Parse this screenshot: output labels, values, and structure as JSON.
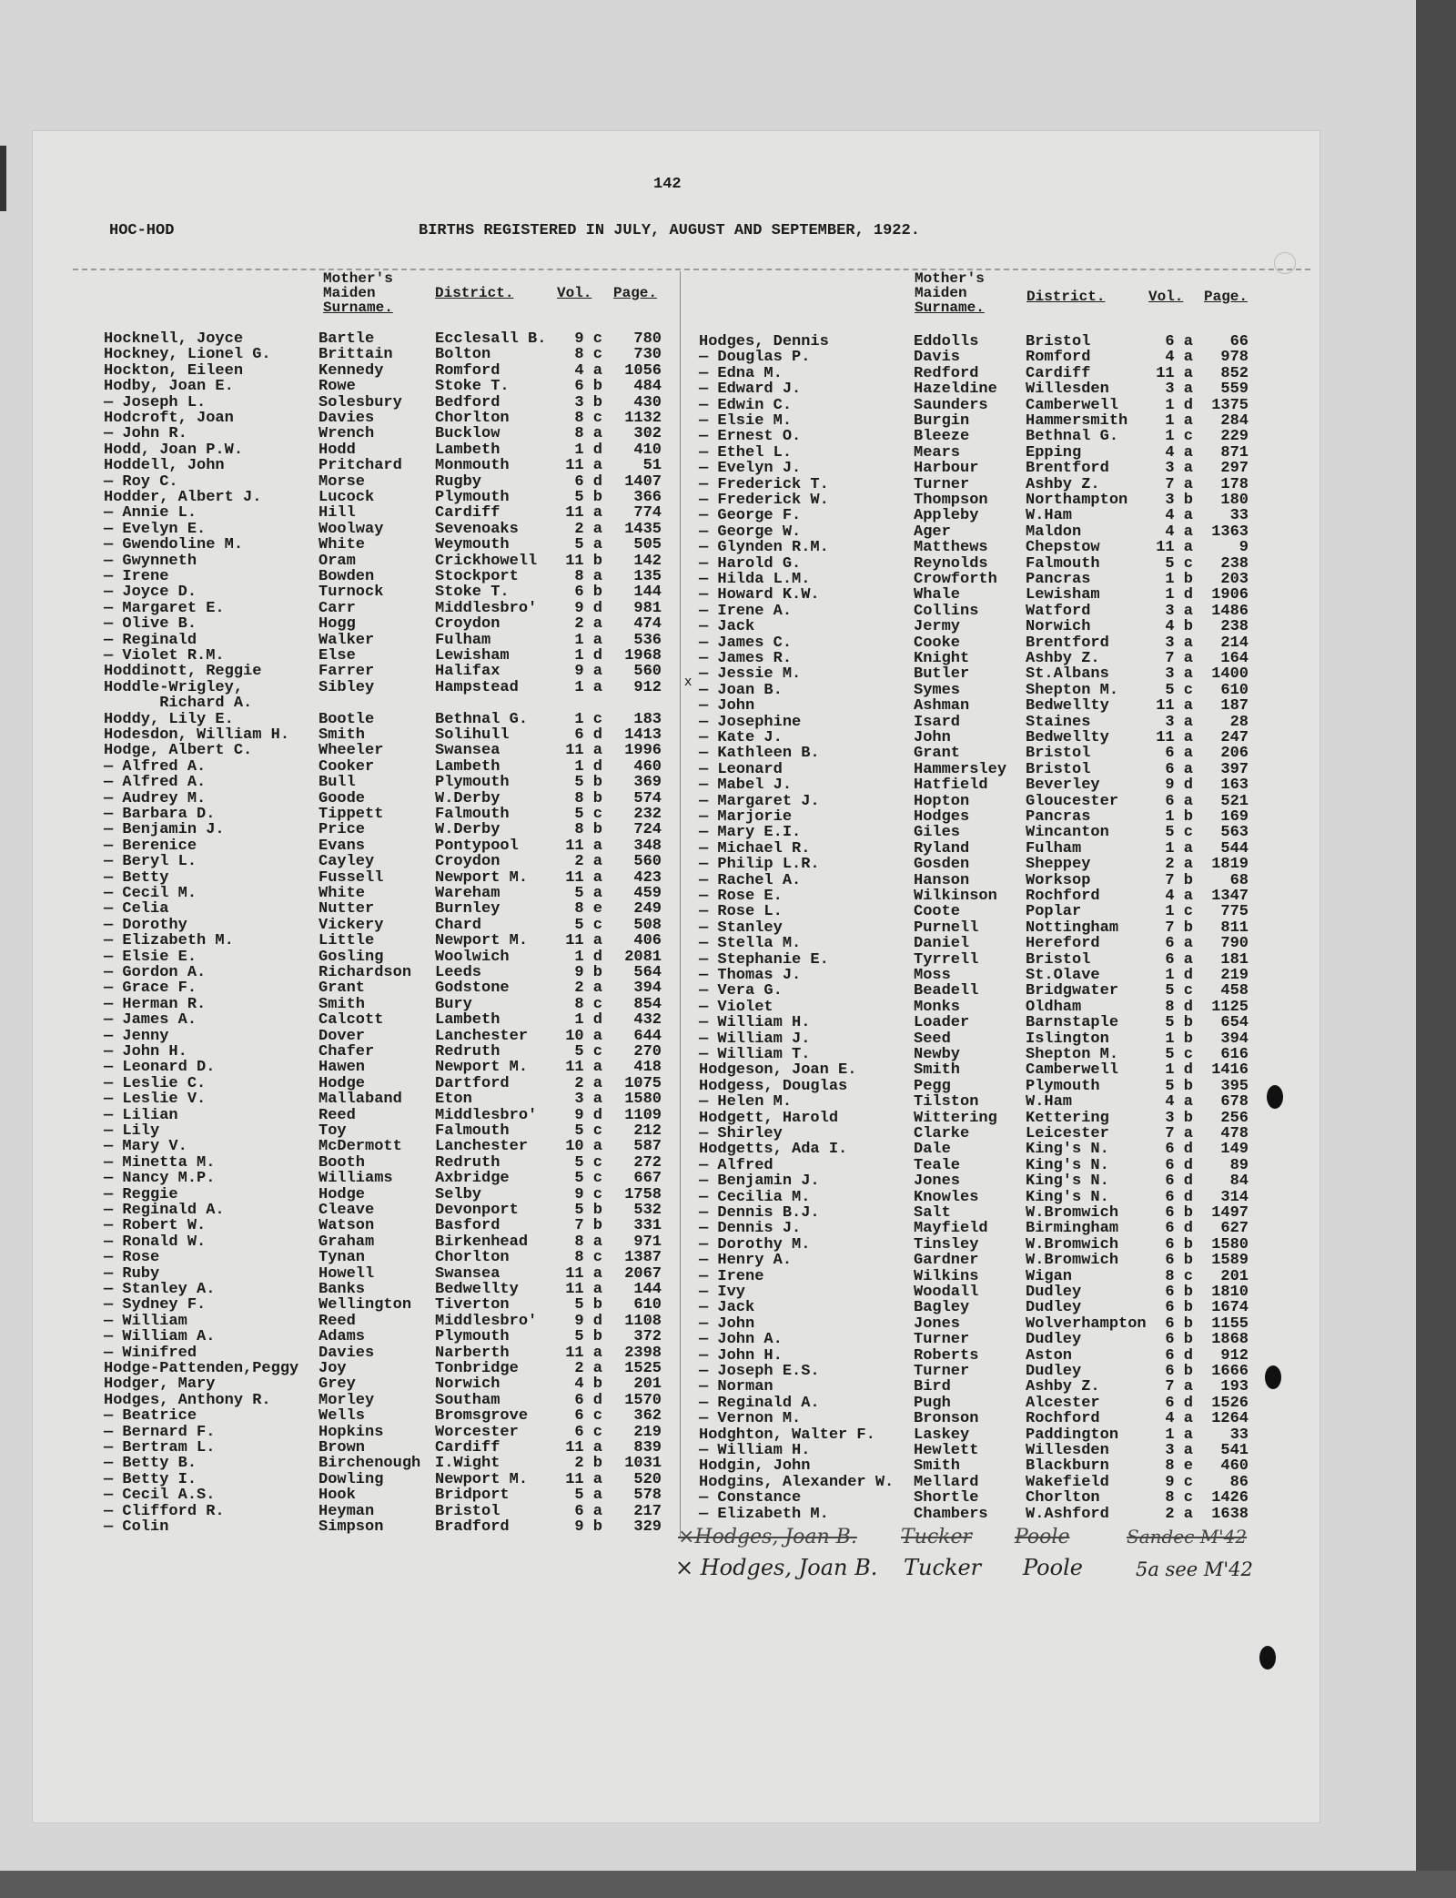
{
  "page_number": "142",
  "index_range": "HOC-HOD",
  "title": "BIRTHS REGISTERED IN JULY, AUGUST AND SEPTEMBER, 1922.",
  "column_headers": {
    "maiden_line1": "Mother's",
    "maiden_line2": "Maiden",
    "maiden_line3": "Surname.",
    "district": "District.",
    "vol": "Vol.",
    "page": "Page."
  },
  "left_entries": [
    [
      "Hocknell, Joyce",
      "Bartle",
      "Ecclesall B.",
      "9 c",
      "780"
    ],
    [
      "Hockney, Lionel G.",
      "Brittain",
      "Bolton",
      "8 c",
      "730"
    ],
    [
      "Hockton, Eileen",
      "Kennedy",
      "Romford",
      "4 a",
      "1056"
    ],
    [
      "Hodby, Joan E.",
      "Rowe",
      "Stoke T.",
      "6 b",
      "484"
    ],
    [
      "— Joseph L.",
      "Solesbury",
      "Bedford",
      "3 b",
      "430"
    ],
    [
      "Hodcroft, Joan",
      "Davies",
      "Chorlton",
      "8 c",
      "1132"
    ],
    [
      "— John R.",
      "Wrench",
      "Bucklow",
      "8 a",
      "302"
    ],
    [
      "Hodd, Joan P.W.",
      "Hodd",
      "Lambeth",
      "1 d",
      "410"
    ],
    [
      "Hoddell, John",
      "Pritchard",
      "Monmouth",
      "11 a",
      "51"
    ],
    [
      "— Roy C.",
      "Morse",
      "Rugby",
      "6 d",
      "1407"
    ],
    [
      "Hodder, Albert J.",
      "Lucock",
      "Plymouth",
      "5 b",
      "366"
    ],
    [
      "— Annie L.",
      "Hill",
      "Cardiff",
      "11 a",
      "774"
    ],
    [
      "— Evelyn E.",
      "Woolway",
      "Sevenoaks",
      "2 a",
      "1435"
    ],
    [
      "— Gwendoline M.",
      "White",
      "Weymouth",
      "5 a",
      "505"
    ],
    [
      "— Gwynneth",
      "Oram",
      "Crickhowell",
      "11 b",
      "142"
    ],
    [
      "— Irene",
      "Bowden",
      "Stockport",
      "8 a",
      "135"
    ],
    [
      "— Joyce D.",
      "Turnock",
      "Stoke T.",
      "6 b",
      "144"
    ],
    [
      "— Margaret E.",
      "Carr",
      "Middlesbro'",
      "9 d",
      "981"
    ],
    [
      "— Olive B.",
      "Hogg",
      "Croydon",
      "2 a",
      "474"
    ],
    [
      "— Reginald",
      "Walker",
      "Fulham",
      "1 a",
      "536"
    ],
    [
      "— Violet R.M.",
      "Else",
      "Lewisham",
      "1 d",
      "1968"
    ],
    [
      "Hoddinott, Reggie",
      "Farrer",
      "Halifax",
      "9 a",
      "560"
    ],
    [
      "Hoddle-Wrigley,",
      "Sibley",
      "Hampstead",
      "1 a",
      "912"
    ],
    [
      "      Richard A.",
      "",
      "",
      "",
      ""
    ],
    [
      "Hoddy, Lily E.",
      "Bootle",
      "Bethnal G.",
      "1 c",
      "183"
    ],
    [
      "Hodesdon, William H.",
      "Smith",
      "Solihull",
      "6 d",
      "1413"
    ],
    [
      "Hodge, Albert C.",
      "Wheeler",
      "Swansea",
      "11 a",
      "1996"
    ],
    [
      "— Alfred A.",
      "Cooker",
      "Lambeth",
      "1 d",
      "460"
    ],
    [
      "— Alfred A.",
      "Bull",
      "Plymouth",
      "5 b",
      "369"
    ],
    [
      "— Audrey M.",
      "Goode",
      "W.Derby",
      "8 b",
      "574"
    ],
    [
      "— Barbara D.",
      "Tippett",
      "Falmouth",
      "5 c",
      "232"
    ],
    [
      "— Benjamin J.",
      "Price",
      "W.Derby",
      "8 b",
      "724"
    ],
    [
      "— Berenice",
      "Evans",
      "Pontypool",
      "11 a",
      "348"
    ],
    [
      "— Beryl L.",
      "Cayley",
      "Croydon",
      "2 a",
      "560"
    ],
    [
      "— Betty",
      "Fussell",
      "Newport M.",
      "11 a",
      "423"
    ],
    [
      "— Cecil M.",
      "White",
      "Wareham",
      "5 a",
      "459"
    ],
    [
      "— Celia",
      "Nutter",
      "Burnley",
      "8 e",
      "249"
    ],
    [
      "— Dorothy",
      "Vickery",
      "Chard",
      "5 c",
      "508"
    ],
    [
      "— Elizabeth M.",
      "Little",
      "Newport M.",
      "11 a",
      "406"
    ],
    [
      "— Elsie E.",
      "Gosling",
      "Woolwich",
      "1 d",
      "2081"
    ],
    [
      "— Gordon A.",
      "Richardson",
      "Leeds",
      "9 b",
      "564"
    ],
    [
      "— Grace F.",
      "Grant",
      "Godstone",
      "2 a",
      "394"
    ],
    [
      "— Herman R.",
      "Smith",
      "Bury",
      "8 c",
      "854"
    ],
    [
      "— James A.",
      "Calcott",
      "Lambeth",
      "1 d",
      "432"
    ],
    [
      "— Jenny",
      "Dover",
      "Lanchester",
      "10 a",
      "644"
    ],
    [
      "— John H.",
      "Chafer",
      "Redruth",
      "5 c",
      "270"
    ],
    [
      "— Leonard D.",
      "Hawen",
      "Newport M.",
      "11 a",
      "418"
    ],
    [
      "— Leslie C.",
      "Hodge",
      "Dartford",
      "2 a",
      "1075"
    ],
    [
      "— Leslie V.",
      "Mallaband",
      "Eton",
      "3 a",
      "1580"
    ],
    [
      "— Lilian",
      "Reed",
      "Middlesbro'",
      "9 d",
      "1109"
    ],
    [
      "— Lily",
      "Toy",
      "Falmouth",
      "5 c",
      "212"
    ],
    [
      "— Mary V.",
      "McDermott",
      "Lanchester",
      "10 a",
      "587"
    ],
    [
      "— Minetta M.",
      "Booth",
      "Redruth",
      "5 c",
      "272"
    ],
    [
      "— Nancy M.P.",
      "Williams",
      "Axbridge",
      "5 c",
      "667"
    ],
    [
      "— Reggie",
      "Hodge",
      "Selby",
      "9 c",
      "1758"
    ],
    [
      "— Reginald A.",
      "Cleave",
      "Devonport",
      "5 b",
      "532"
    ],
    [
      "— Robert W.",
      "Watson",
      "Basford",
      "7 b",
      "331"
    ],
    [
      "— Ronald W.",
      "Graham",
      "Birkenhead",
      "8 a",
      "971"
    ],
    [
      "— Rose",
      "Tynan",
      "Chorlton",
      "8 c",
      "1387"
    ],
    [
      "— Ruby",
      "Howell",
      "Swansea",
      "11 a",
      "2067"
    ],
    [
      "— Stanley A.",
      "Banks",
      "Bedwellty",
      "11 a",
      "144"
    ],
    [
      "— Sydney F.",
      "Wellington",
      "Tiverton",
      "5 b",
      "610"
    ],
    [
      "— William",
      "Reed",
      "Middlesbro'",
      "9 d",
      "1108"
    ],
    [
      "— William A.",
      "Adams",
      "Plymouth",
      "5 b",
      "372"
    ],
    [
      "— Winifred",
      "Davies",
      "Narberth",
      "11 a",
      "2398"
    ],
    [
      "Hodge-Pattenden,Peggy",
      "Joy",
      "Tonbridge",
      "2 a",
      "1525"
    ],
    [
      "Hodger, Mary",
      "Grey",
      "Norwich",
      "4 b",
      "201"
    ],
    [
      "Hodges, Anthony R.",
      "Morley",
      "Southam",
      "6 d",
      "1570"
    ],
    [
      "— Beatrice",
      "Wells",
      "Bromsgrove",
      "6 c",
      "362"
    ],
    [
      "— Bernard F.",
      "Hopkins",
      "Worcester",
      "6 c",
      "219"
    ],
    [
      "— Bertram L.",
      "Brown",
      "Cardiff",
      "11 a",
      "839"
    ],
    [
      "— Betty B.",
      "Birchenough",
      "I.Wight",
      "2 b",
      "1031"
    ],
    [
      "— Betty I.",
      "Dowling",
      "Newport M.",
      "11 a",
      "520"
    ],
    [
      "— Cecil A.S.",
      "Hook",
      "Bridport",
      "5 a",
      "578"
    ],
    [
      "— Clifford R.",
      "Heyman",
      "Bristol",
      "6 a",
      "217"
    ],
    [
      "— Colin",
      "Simpson",
      "Bradford",
      "9 b",
      "329"
    ]
  ],
  "right_entries": [
    [
      "Hodges, Dennis",
      "Eddolls",
      "Bristol",
      "6 a",
      "66"
    ],
    [
      "— Douglas P.",
      "Davis",
      "Romford",
      "4 a",
      "978"
    ],
    [
      "— Edna M.",
      "Redford",
      "Cardiff",
      "11 a",
      "852"
    ],
    [
      "— Edward J.",
      "Hazeldine",
      "Willesden",
      "3 a",
      "559"
    ],
    [
      "— Edwin C.",
      "Saunders",
      "Camberwell",
      "1 d",
      "1375"
    ],
    [
      "— Elsie M.",
      "Burgin",
      "Hammersmith",
      "1 a",
      "284"
    ],
    [
      "— Ernest O.",
      "Bleeze",
      "Bethnal G.",
      "1 c",
      "229"
    ],
    [
      "— Ethel L.",
      "Mears",
      "Epping",
      "4 a",
      "871"
    ],
    [
      "— Evelyn J.",
      "Harbour",
      "Brentford",
      "3 a",
      "297"
    ],
    [
      "— Frederick T.",
      "Turner",
      "Ashby Z.",
      "7 a",
      "178"
    ],
    [
      "— Frederick W.",
      "Thompson",
      "Northampton",
      "3 b",
      "180"
    ],
    [
      "— George F.",
      "Appleby",
      "W.Ham",
      "4 a",
      "33"
    ],
    [
      "— George W.",
      "Ager",
      "Maldon",
      "4 a",
      "1363"
    ],
    [
      "— Glynden R.M.",
      "Matthews",
      "Chepstow",
      "11 a",
      "9"
    ],
    [
      "— Harold G.",
      "Reynolds",
      "Falmouth",
      "5 c",
      "238"
    ],
    [
      "— Hilda L.M.",
      "Crowforth",
      "Pancras",
      "1 b",
      "203"
    ],
    [
      "— Howard K.W.",
      "Whale",
      "Lewisham",
      "1 d",
      "1906"
    ],
    [
      "— Irene A.",
      "Collins",
      "Watford",
      "3 a",
      "1486"
    ],
    [
      "— Jack",
      "Jermy",
      "Norwich",
      "4 b",
      "238"
    ],
    [
      "— James C.",
      "Cooke",
      "Brentford",
      "3 a",
      "214"
    ],
    [
      "— James R.",
      "Knight",
      "Ashby Z.",
      "7 a",
      "164"
    ],
    [
      "— Jessie M.",
      "Butler",
      "St.Albans",
      "3 a",
      "1400"
    ],
    [
      "— Joan B.",
      "Symes",
      "Shepton M.",
      "5 c",
      "610"
    ],
    [
      "— John",
      "Ashman",
      "Bedwellty",
      "11 a",
      "187"
    ],
    [
      "— Josephine",
      "Isard",
      "Staines",
      "3 a",
      "28"
    ],
    [
      "— Kate J.",
      "John",
      "Bedwellty",
      "11 a",
      "247"
    ],
    [
      "— Kathleen B.",
      "Grant",
      "Bristol",
      "6 a",
      "206"
    ],
    [
      "— Leonard",
      "Hammersley",
      "Bristol",
      "6 a",
      "397"
    ],
    [
      "— Mabel J.",
      "Hatfield",
      "Beverley",
      "9 d",
      "163"
    ],
    [
      "— Margaret J.",
      "Hopton",
      "Gloucester",
      "6 a",
      "521"
    ],
    [
      "— Marjorie",
      "Hodges",
      "Pancras",
      "1 b",
      "169"
    ],
    [
      "— Mary E.I.",
      "Giles",
      "Wincanton",
      "5 c",
      "563"
    ],
    [
      "— Michael R.",
      "Ryland",
      "Fulham",
      "1 a",
      "544"
    ],
    [
      "— Philip L.R.",
      "Gosden",
      "Sheppey",
      "2 a",
      "1819"
    ],
    [
      "— Rachel A.",
      "Hanson",
      "Worksop",
      "7 b",
      "68"
    ],
    [
      "— Rose E.",
      "Wilkinson",
      "Rochford",
      "4 a",
      "1347"
    ],
    [
      "— Rose L.",
      "Coote",
      "Poplar",
      "1 c",
      "775"
    ],
    [
      "— Stanley",
      "Purnell",
      "Nottingham",
      "7 b",
      "811"
    ],
    [
      "— Stella M.",
      "Daniel",
      "Hereford",
      "6 a",
      "790"
    ],
    [
      "— Stephanie E.",
      "Tyrrell",
      "Bristol",
      "6 a",
      "181"
    ],
    [
      "— Thomas J.",
      "Moss",
      "St.Olave",
      "1 d",
      "219"
    ],
    [
      "— Vera G.",
      "Beadell",
      "Bridgwater",
      "5 c",
      "458"
    ],
    [
      "— Violet",
      "Monks",
      "Oldham",
      "8 d",
      "1125"
    ],
    [
      "— William H.",
      "Loader",
      "Barnstaple",
      "5 b",
      "654"
    ],
    [
      "— William J.",
      "Seed",
      "Islington",
      "1 b",
      "394"
    ],
    [
      "— William T.",
      "Newby",
      "Shepton M.",
      "5 c",
      "616"
    ],
    [
      "Hodgeson, Joan E.",
      "Smith",
      "Camberwell",
      "1 d",
      "1416"
    ],
    [
      "Hodgess, Douglas",
      "Pegg",
      "Plymouth",
      "5 b",
      "395"
    ],
    [
      "— Helen M.",
      "Tilston",
      "W.Ham",
      "4 a",
      "678"
    ],
    [
      "Hodgett, Harold",
      "Wittering",
      "Kettering",
      "3 b",
      "256"
    ],
    [
      "— Shirley",
      "Clarke",
      "Leicester",
      "7 a",
      "478"
    ],
    [
      "Hodgetts, Ada I.",
      "Dale",
      "King's N.",
      "6 d",
      "149"
    ],
    [
      "— Alfred",
      "Teale",
      "King's N.",
      "6 d",
      "89"
    ],
    [
      "— Benjamin J.",
      "Jones",
      "King's N.",
      "6 d",
      "84"
    ],
    [
      "— Cecilia M.",
      "Knowles",
      "King's N.",
      "6 d",
      "314"
    ],
    [
      "— Dennis B.J.",
      "Salt",
      "W.Bromwich",
      "6 b",
      "1497"
    ],
    [
      "— Dennis J.",
      "Mayfield",
      "Birmingham",
      "6 d",
      "627"
    ],
    [
      "— Dorothy M.",
      "Tinsley",
      "W.Bromwich",
      "6 b",
      "1580"
    ],
    [
      "— Henry A.",
      "Gardner",
      "W.Bromwich",
      "6 b",
      "1589"
    ],
    [
      "— Irene",
      "Wilkins",
      "Wigan",
      "8 c",
      "201"
    ],
    [
      "— Ivy",
      "Woodall",
      "Dudley",
      "6 b",
      "1810"
    ],
    [
      "— Jack",
      "Bagley",
      "Dudley",
      "6 b",
      "1674"
    ],
    [
      "— John",
      "Jones",
      "Wolverhampton",
      "6 b",
      "1155"
    ],
    [
      "— John A.",
      "Turner",
      "Dudley",
      "6 b",
      "1868"
    ],
    [
      "— John H.",
      "Roberts",
      "Aston",
      "6 d",
      "912"
    ],
    [
      "— Joseph E.S.",
      "Turner",
      "Dudley",
      "6 b",
      "1666"
    ],
    [
      "— Norman",
      "Bird",
      "Ashby Z.",
      "7 a",
      "193"
    ],
    [
      "— Reginald A.",
      "Pugh",
      "Alcester",
      "6 d",
      "1526"
    ],
    [
      "— Vernon M.",
      "Bronson",
      "Rochford",
      "4 a",
      "1264"
    ],
    [
      "Hodghton, Walter F.",
      "Laskey",
      "Paddington",
      "1 a",
      "33"
    ],
    [
      "— William H.",
      "Hewlett",
      "Willesden",
      "3 a",
      "541"
    ],
    [
      "Hodgin, John",
      "Smith",
      "Blackburn",
      "8 e",
      "460"
    ],
    [
      "Hodgins, Alexander W.",
      "Mellard",
      "Wakefield",
      "9 c",
      "86"
    ],
    [
      "— Constance",
      "Shortle",
      "Chorlton",
      "8 c",
      "1426"
    ],
    [
      "— Elizabeth M.",
      "Chambers",
      "W.Ashford",
      "2 a",
      "1638"
    ]
  ],
  "margin_mark": "x",
  "handwritten": {
    "struck": {
      "name": "×Hodges, Joan B.",
      "maiden": "Tucker",
      "district": "Poole",
      "ref": "Sandec M'42"
    },
    "correction": {
      "name": "× Hodges, Joan B.",
      "maiden": "Tucker",
      "district": "Poole",
      "ref": "5a see M'42"
    }
  }
}
